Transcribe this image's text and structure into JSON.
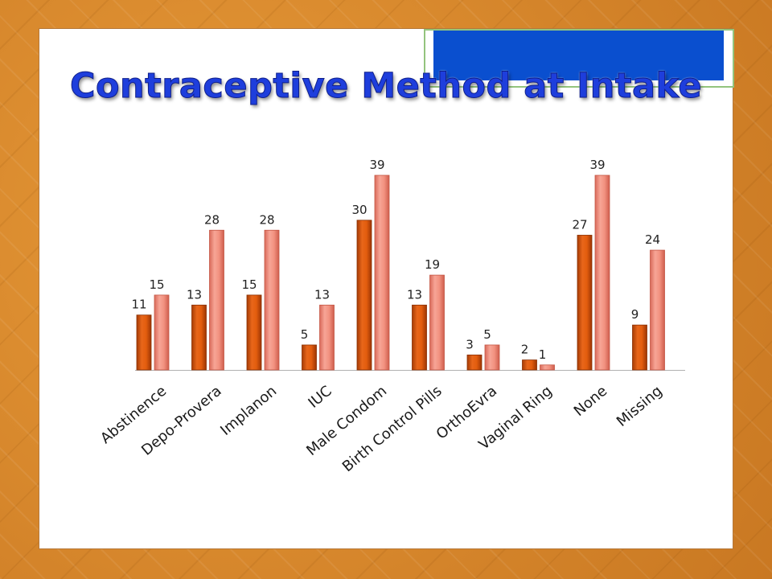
{
  "title": "Contraceptive Method at Intake",
  "colors": {
    "series_1": "#e2620f",
    "series_2": "#f08874",
    "title": "#1e3edc",
    "header_box": "#0a4fcf",
    "header_box_border": "#93c47d"
  },
  "chart_data": {
    "type": "bar",
    "categories": [
      "Abstinence",
      "Depo-Provera",
      "Implanon",
      "IUC",
      "Male Condom",
      "Birth Control Pills",
      "OrthoEvra",
      "Vaginal Ring",
      "None",
      "Missing"
    ],
    "series": [
      {
        "values": [
          11,
          13,
          15,
          5,
          30,
          13,
          3,
          2,
          27,
          9
        ]
      },
      {
        "values": [
          15,
          28,
          28,
          13,
          39,
          19,
          5,
          1,
          39,
          24
        ]
      }
    ],
    "ylim": [
      0,
      39
    ],
    "grid": false,
    "legend": "none",
    "title": "",
    "xlabel": "",
    "ylabel": ""
  }
}
